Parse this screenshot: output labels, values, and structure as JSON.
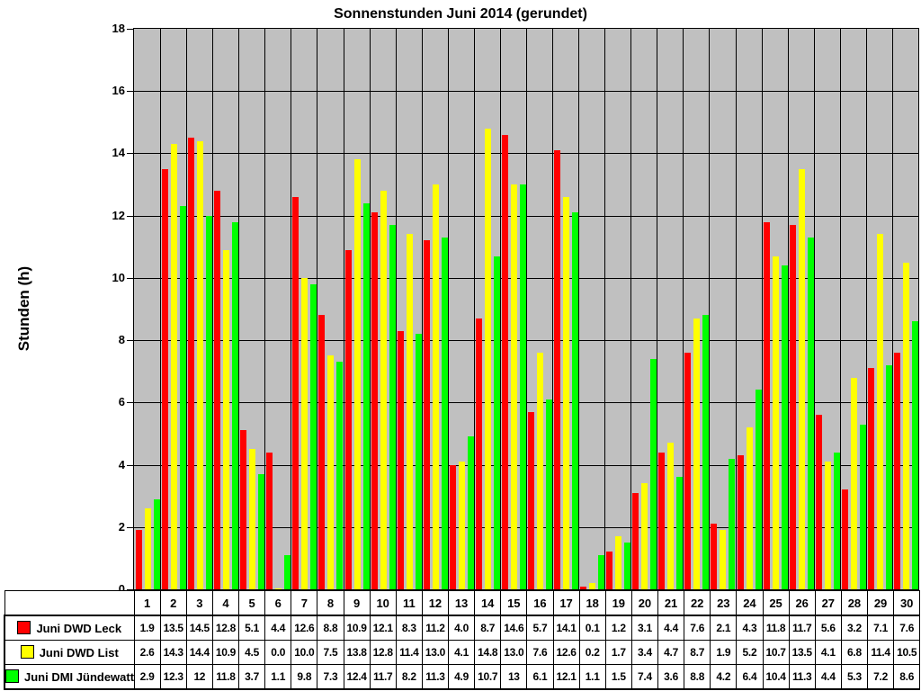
{
  "chart_data": {
    "type": "bar",
    "title": "Sonnenstunden Juni 2014 (gerundet)",
    "xlabel": "",
    "ylabel": "Stunden (h)",
    "ylim": [
      0,
      18
    ],
    "y_tick_step": 2,
    "y_ticks": [
      0,
      2,
      4,
      6,
      8,
      10,
      12,
      14,
      16,
      18
    ],
    "grid": true,
    "plot_background": "#c0c0c0",
    "gridline_color": "#000000",
    "legend_position": "bottom-table",
    "categories": [
      "1",
      "2",
      "3",
      "4",
      "5",
      "6",
      "7",
      "8",
      "9",
      "10",
      "11",
      "12",
      "13",
      "14",
      "15",
      "16",
      "17",
      "18",
      "19",
      "20",
      "21",
      "22",
      "23",
      "24",
      "25",
      "26",
      "27",
      "28",
      "29",
      "30"
    ],
    "series": [
      {
        "name": "Juni DWD Leck",
        "color": "#ff0000",
        "values": [
          1.9,
          13.5,
          14.5,
          12.8,
          5.1,
          4.4,
          12.6,
          8.8,
          10.9,
          12.1,
          8.3,
          11.2,
          4.0,
          8.7,
          14.6,
          5.7,
          14.1,
          0.1,
          1.2,
          3.1,
          4.4,
          7.6,
          2.1,
          4.3,
          11.8,
          11.7,
          5.6,
          3.2,
          7.1,
          7.6
        ],
        "display_values": [
          "1.9",
          "13.5",
          "14.5",
          "12.8",
          "5.1",
          "4.4",
          "12.6",
          "8.8",
          "10.9",
          "12.1",
          "8.3",
          "11.2",
          "4.0",
          "8.7",
          "14.6",
          "5.7",
          "14.1",
          "0.1",
          "1.2",
          "3.1",
          "4.4",
          "7.6",
          "2.1",
          "4.3",
          "11.8",
          "11.7",
          "5.6",
          "3.2",
          "7.1",
          "7.6"
        ]
      },
      {
        "name": "Juni DWD List",
        "color": "#ffff00",
        "values": [
          2.6,
          14.3,
          14.4,
          10.9,
          4.5,
          0.0,
          10.0,
          7.5,
          13.8,
          12.8,
          11.4,
          13.0,
          4.1,
          14.8,
          13.0,
          7.6,
          12.6,
          0.2,
          1.7,
          3.4,
          4.7,
          8.7,
          1.9,
          5.2,
          10.7,
          13.5,
          4.1,
          6.8,
          11.4,
          10.5
        ],
        "display_values": [
          "2.6",
          "14.3",
          "14.4",
          "10.9",
          "4.5",
          "0.0",
          "10.0",
          "7.5",
          "13.8",
          "12.8",
          "11.4",
          "13.0",
          "4.1",
          "14.8",
          "13.0",
          "7.6",
          "12.6",
          "0.2",
          "1.7",
          "3.4",
          "4.7",
          "8.7",
          "1.9",
          "5.2",
          "10.7",
          "13.5",
          "4.1",
          "6.8",
          "11.4",
          "10.5"
        ]
      },
      {
        "name": "Juni DMI Jündewatt",
        "color": "#00ff00",
        "values": [
          2.9,
          12.3,
          12,
          11.8,
          3.7,
          1.1,
          9.8,
          7.3,
          12.4,
          11.7,
          8.2,
          11.3,
          4.9,
          10.7,
          13,
          6.1,
          12.1,
          1.1,
          1.5,
          7.4,
          3.6,
          8.8,
          4.2,
          6.4,
          10.4,
          11.3,
          4.4,
          5.3,
          7.2,
          8.6
        ],
        "display_values": [
          "2.9",
          "12.3",
          "12",
          "11.8",
          "3.7",
          "1.1",
          "9.8",
          "7.3",
          "12.4",
          "11.7",
          "8.2",
          "11.3",
          "4.9",
          "10.7",
          "13",
          "6.1",
          "12.1",
          "1.1",
          "1.5",
          "7.4",
          "3.6",
          "8.8",
          "4.2",
          "6.4",
          "10.4",
          "11.3",
          "4.4",
          "5.3",
          "7.2",
          "8.6"
        ]
      }
    ]
  }
}
